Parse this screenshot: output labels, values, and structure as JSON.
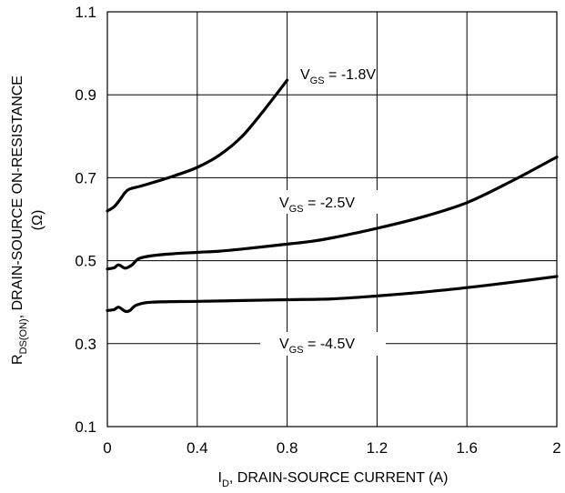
{
  "chart_data": {
    "type": "line",
    "xlabel": {
      "prefix": "I",
      "sub": "D",
      "rest": ", DRAIN-SOURCE CURRENT (A)"
    },
    "ylabel": {
      "prefix": "R",
      "sub": "DS(ON)",
      "rest": ", DRAIN-SOURCE ON-RESISTANCE",
      "line2": "(Ω)"
    },
    "xlim": [
      0,
      2
    ],
    "ylim": [
      0.1,
      1.1
    ],
    "x_ticks": [
      "0",
      "0.4",
      "0.8",
      "1.2",
      "1.6",
      "2"
    ],
    "x_tick_values": [
      0,
      0.4,
      0.8,
      1.2,
      1.6,
      2
    ],
    "y_ticks": [
      "0.1",
      "0.3",
      "0.5",
      "0.7",
      "0.9",
      "1.1"
    ],
    "y_tick_values": [
      0.1,
      0.3,
      0.5,
      0.7,
      0.9,
      1.1
    ],
    "grid": true,
    "series": [
      {
        "name": "VGS = -1.8V",
        "label": {
          "prefix": "V",
          "sub": "GS",
          "rest": " = -1.8V"
        },
        "x": [
          0,
          0.03,
          0.06,
          0.08,
          0.1,
          0.15,
          0.2,
          0.3,
          0.4,
          0.5,
          0.6,
          0.7,
          0.8
        ],
        "y": [
          0.62,
          0.63,
          0.65,
          0.665,
          0.673,
          0.68,
          0.688,
          0.705,
          0.725,
          0.755,
          0.8,
          0.865,
          0.935
        ]
      },
      {
        "name": "VGS = -2.5V",
        "label": {
          "prefix": "V",
          "sub": "GS",
          "rest": " = -2.5V"
        },
        "x": [
          0,
          0.03,
          0.05,
          0.08,
          0.11,
          0.14,
          0.2,
          0.3,
          0.4,
          0.5,
          0.6,
          0.8,
          0.9,
          1.0,
          1.2,
          1.4,
          1.6,
          1.8,
          2.0
        ],
        "y": [
          0.48,
          0.483,
          0.49,
          0.482,
          0.49,
          0.505,
          0.512,
          0.517,
          0.52,
          0.523,
          0.528,
          0.54,
          0.546,
          0.555,
          0.578,
          0.605,
          0.64,
          0.692,
          0.75
        ]
      },
      {
        "name": "VGS = -4.5V",
        "label": {
          "prefix": "V",
          "sub": "GS",
          "rest": " = -4.5V"
        },
        "x": [
          0,
          0.03,
          0.05,
          0.08,
          0.1,
          0.13,
          0.2,
          0.4,
          0.6,
          0.8,
          1.0,
          1.2,
          1.4,
          1.6,
          1.8,
          2.0
        ],
        "y": [
          0.38,
          0.382,
          0.388,
          0.378,
          0.38,
          0.393,
          0.4,
          0.402,
          0.404,
          0.406,
          0.408,
          0.415,
          0.424,
          0.435,
          0.448,
          0.462
        ]
      }
    ]
  }
}
